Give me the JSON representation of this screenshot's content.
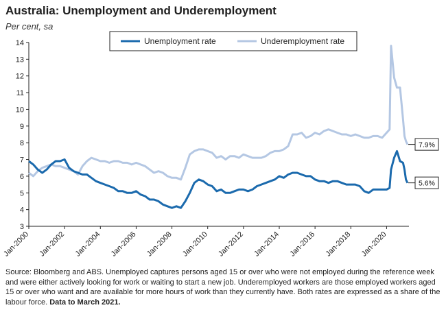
{
  "title": "Australia: Unemployment and Underemployment",
  "subtitle": "Per cent, sa",
  "source_text": "Source: Bloomberg and ABS.  Unemployed captures persons aged 15 or over who were not employed during the reference week and were either actively looking for work or waiting to start a new job.  Underemployed workers are those employed workers aged 15 or over who want and are available for more hours of work than they currently have.  Both rates are expressed as a share of the labour force.",
  "source_bold": "Data to March 2021.",
  "colors": {
    "unemployment": "#1b6aad",
    "underemployment": "#b4c7e3"
  },
  "chart_data": {
    "type": "line",
    "ylim": [
      3,
      14
    ],
    "y_ticks": [
      3,
      4,
      5,
      6,
      7,
      8,
      9,
      10,
      11,
      12,
      13,
      14
    ],
    "xlim": [
      2000.0,
      2021.25
    ],
    "x_ticks": [
      {
        "value": 2000,
        "label": "Jan-2000"
      },
      {
        "value": 2002,
        "label": "Jan-2002"
      },
      {
        "value": 2004,
        "label": "Jan-2004"
      },
      {
        "value": 2006,
        "label": "Jan-2006"
      },
      {
        "value": 2008,
        "label": "Jan-2008"
      },
      {
        "value": 2010,
        "label": "Jan-2010"
      },
      {
        "value": 2012,
        "label": "Jan-2012"
      },
      {
        "value": 2014,
        "label": "Jan-2014"
      },
      {
        "value": 2016,
        "label": "Jan-2016"
      },
      {
        "value": 2018,
        "label": "Jan-2018"
      },
      {
        "value": 2020,
        "label": "Jan-2020"
      }
    ],
    "grid": false,
    "legend_position": "top-center",
    "series": [
      {
        "name": "Unemployment rate",
        "color_key": "unemployment",
        "end_label": "5.6%",
        "points": [
          [
            2000.0,
            6.9
          ],
          [
            2000.25,
            6.7
          ],
          [
            2000.5,
            6.4
          ],
          [
            2000.75,
            6.2
          ],
          [
            2001.0,
            6.4
          ],
          [
            2001.25,
            6.7
          ],
          [
            2001.5,
            6.9
          ],
          [
            2001.75,
            6.9
          ],
          [
            2002.0,
            7.0
          ],
          [
            2002.25,
            6.5
          ],
          [
            2002.5,
            6.3
          ],
          [
            2002.75,
            6.2
          ],
          [
            2003.0,
            6.1
          ],
          [
            2003.25,
            6.1
          ],
          [
            2003.5,
            5.9
          ],
          [
            2003.75,
            5.7
          ],
          [
            2004.0,
            5.6
          ],
          [
            2004.25,
            5.5
          ],
          [
            2004.5,
            5.4
          ],
          [
            2004.75,
            5.3
          ],
          [
            2005.0,
            5.1
          ],
          [
            2005.25,
            5.1
          ],
          [
            2005.5,
            5.0
          ],
          [
            2005.75,
            5.0
          ],
          [
            2006.0,
            5.1
          ],
          [
            2006.25,
            4.9
          ],
          [
            2006.5,
            4.8
          ],
          [
            2006.75,
            4.6
          ],
          [
            2007.0,
            4.6
          ],
          [
            2007.25,
            4.5
          ],
          [
            2007.5,
            4.3
          ],
          [
            2007.75,
            4.2
          ],
          [
            2008.0,
            4.1
          ],
          [
            2008.25,
            4.2
          ],
          [
            2008.5,
            4.1
          ],
          [
            2008.75,
            4.5
          ],
          [
            2009.0,
            5.0
          ],
          [
            2009.25,
            5.6
          ],
          [
            2009.5,
            5.8
          ],
          [
            2009.75,
            5.7
          ],
          [
            2010.0,
            5.5
          ],
          [
            2010.25,
            5.4
          ],
          [
            2010.5,
            5.1
          ],
          [
            2010.75,
            5.2
          ],
          [
            2011.0,
            5.0
          ],
          [
            2011.25,
            5.0
          ],
          [
            2011.5,
            5.1
          ],
          [
            2011.75,
            5.2
          ],
          [
            2012.0,
            5.2
          ],
          [
            2012.25,
            5.1
          ],
          [
            2012.5,
            5.2
          ],
          [
            2012.75,
            5.4
          ],
          [
            2013.0,
            5.5
          ],
          [
            2013.25,
            5.6
          ],
          [
            2013.5,
            5.7
          ],
          [
            2013.75,
            5.8
          ],
          [
            2014.0,
            6.0
          ],
          [
            2014.25,
            5.9
          ],
          [
            2014.5,
            6.1
          ],
          [
            2014.75,
            6.2
          ],
          [
            2015.0,
            6.2
          ],
          [
            2015.25,
            6.1
          ],
          [
            2015.5,
            6.0
          ],
          [
            2015.75,
            6.0
          ],
          [
            2016.0,
            5.8
          ],
          [
            2016.25,
            5.7
          ],
          [
            2016.5,
            5.7
          ],
          [
            2016.75,
            5.6
          ],
          [
            2017.0,
            5.7
          ],
          [
            2017.25,
            5.7
          ],
          [
            2017.5,
            5.6
          ],
          [
            2017.75,
            5.5
          ],
          [
            2018.0,
            5.5
          ],
          [
            2018.25,
            5.5
          ],
          [
            2018.5,
            5.4
          ],
          [
            2018.75,
            5.1
          ],
          [
            2019.0,
            5.0
          ],
          [
            2019.25,
            5.2
          ],
          [
            2019.5,
            5.2
          ],
          [
            2019.75,
            5.2
          ],
          [
            2020.0,
            5.2
          ],
          [
            2020.17,
            5.3
          ],
          [
            2020.25,
            6.4
          ],
          [
            2020.42,
            7.1
          ],
          [
            2020.58,
            7.5
          ],
          [
            2020.75,
            6.9
          ],
          [
            2020.92,
            6.8
          ],
          [
            2021.0,
            6.4
          ],
          [
            2021.08,
            5.8
          ],
          [
            2021.17,
            5.6
          ]
        ]
      },
      {
        "name": "Underemployment rate",
        "color_key": "underemployment",
        "end_label": "7.9%",
        "points": [
          [
            2000.0,
            6.2
          ],
          [
            2000.25,
            6.0
          ],
          [
            2000.5,
            6.3
          ],
          [
            2000.75,
            6.5
          ],
          [
            2001.0,
            6.6
          ],
          [
            2001.25,
            6.7
          ],
          [
            2001.5,
            6.6
          ],
          [
            2001.75,
            6.6
          ],
          [
            2002.0,
            6.5
          ],
          [
            2002.25,
            6.4
          ],
          [
            2002.5,
            6.3
          ],
          [
            2002.75,
            6.1
          ],
          [
            2003.0,
            6.6
          ],
          [
            2003.25,
            6.9
          ],
          [
            2003.5,
            7.1
          ],
          [
            2003.75,
            7.0
          ],
          [
            2004.0,
            6.9
          ],
          [
            2004.25,
            6.9
          ],
          [
            2004.5,
            6.8
          ],
          [
            2004.75,
            6.9
          ],
          [
            2005.0,
            6.9
          ],
          [
            2005.25,
            6.8
          ],
          [
            2005.5,
            6.8
          ],
          [
            2005.75,
            6.7
          ],
          [
            2006.0,
            6.8
          ],
          [
            2006.25,
            6.7
          ],
          [
            2006.5,
            6.6
          ],
          [
            2006.75,
            6.4
          ],
          [
            2007.0,
            6.2
          ],
          [
            2007.25,
            6.3
          ],
          [
            2007.5,
            6.2
          ],
          [
            2007.75,
            6.0
          ],
          [
            2008.0,
            5.9
          ],
          [
            2008.25,
            5.9
          ],
          [
            2008.5,
            5.8
          ],
          [
            2008.75,
            6.5
          ],
          [
            2009.0,
            7.3
          ],
          [
            2009.25,
            7.5
          ],
          [
            2009.5,
            7.6
          ],
          [
            2009.75,
            7.6
          ],
          [
            2010.0,
            7.5
          ],
          [
            2010.25,
            7.4
          ],
          [
            2010.5,
            7.1
          ],
          [
            2010.75,
            7.2
          ],
          [
            2011.0,
            7.0
          ],
          [
            2011.25,
            7.2
          ],
          [
            2011.5,
            7.2
          ],
          [
            2011.75,
            7.1
          ],
          [
            2012.0,
            7.3
          ],
          [
            2012.25,
            7.2
          ],
          [
            2012.5,
            7.1
          ],
          [
            2012.75,
            7.1
          ],
          [
            2013.0,
            7.1
          ],
          [
            2013.25,
            7.2
          ],
          [
            2013.5,
            7.4
          ],
          [
            2013.75,
            7.5
          ],
          [
            2014.0,
            7.5
          ],
          [
            2014.25,
            7.6
          ],
          [
            2014.5,
            7.8
          ],
          [
            2014.75,
            8.5
          ],
          [
            2015.0,
            8.5
          ],
          [
            2015.25,
            8.6
          ],
          [
            2015.5,
            8.3
          ],
          [
            2015.75,
            8.4
          ],
          [
            2016.0,
            8.6
          ],
          [
            2016.25,
            8.5
          ],
          [
            2016.5,
            8.7
          ],
          [
            2016.75,
            8.8
          ],
          [
            2017.0,
            8.7
          ],
          [
            2017.25,
            8.6
          ],
          [
            2017.5,
            8.5
          ],
          [
            2017.75,
            8.5
          ],
          [
            2018.0,
            8.4
          ],
          [
            2018.25,
            8.5
          ],
          [
            2018.5,
            8.4
          ],
          [
            2018.75,
            8.3
          ],
          [
            2019.0,
            8.3
          ],
          [
            2019.25,
            8.4
          ],
          [
            2019.5,
            8.4
          ],
          [
            2019.75,
            8.3
          ],
          [
            2020.0,
            8.6
          ],
          [
            2020.17,
            8.8
          ],
          [
            2020.25,
            13.8
          ],
          [
            2020.42,
            11.9
          ],
          [
            2020.58,
            11.3
          ],
          [
            2020.75,
            11.3
          ],
          [
            2020.92,
            9.4
          ],
          [
            2021.0,
            8.4
          ],
          [
            2021.08,
            8.1
          ],
          [
            2021.17,
            7.9
          ]
        ]
      }
    ]
  }
}
